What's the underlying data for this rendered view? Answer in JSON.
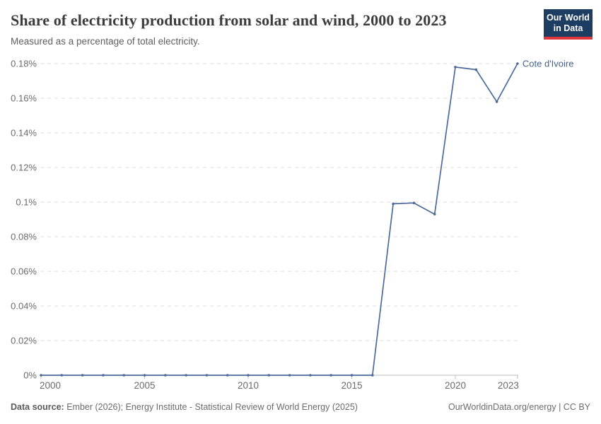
{
  "header": {
    "title": "Share of electricity production from solar and wind, 2000 to 2023",
    "subtitle": "Measured as a percentage of total electricity.",
    "logo": {
      "line1": "Our World",
      "line2": "in Data"
    }
  },
  "chart_data": {
    "type": "line",
    "title": "Share of electricity production from solar and wind, 2000 to 2023",
    "xlabel": "",
    "ylabel": "",
    "x": [
      2000,
      2001,
      2002,
      2003,
      2004,
      2005,
      2006,
      2007,
      2008,
      2009,
      2010,
      2011,
      2012,
      2013,
      2014,
      2015,
      2016,
      2017,
      2018,
      2019,
      2020,
      2021,
      2022,
      2023
    ],
    "series": [
      {
        "name": "Cote d'Ivoire",
        "color": "#4c6a9c",
        "values": [
          0,
          0,
          0,
          0,
          0,
          0,
          0,
          0,
          0,
          0,
          0,
          0,
          0,
          0,
          0,
          0,
          0,
          0.099,
          0.0995,
          0.093,
          0.178,
          0.1765,
          0.158,
          0.18
        ]
      }
    ],
    "x_ticks": [
      2000,
      2005,
      2010,
      2015,
      2020,
      2023
    ],
    "y_ticks": [
      "0%",
      "0.02%",
      "0.04%",
      "0.06%",
      "0.08%",
      "0.1%",
      "0.12%",
      "0.14%",
      "0.16%",
      "0.18%"
    ],
    "y_tick_values": [
      0,
      0.02,
      0.04,
      0.06,
      0.08,
      0.1,
      0.12,
      0.14,
      0.16,
      0.18
    ],
    "ylim": [
      0,
      0.18
    ],
    "grid": "horizontal-dashed",
    "legend_position": "end-of-line-label",
    "colors": {
      "line": "#4c6a9c",
      "series_label": "#44618f",
      "gridline": "#dedede",
      "axis_line": "#bcbcbc",
      "tick_label": "#6b6b6b"
    }
  },
  "footer": {
    "datasource_label": "Data source:",
    "datasource_text": "Ember (2026); Energy Institute - Statistical Review of World Energy (2025)",
    "link_text": "OurWorldinData.org/energy | CC BY"
  }
}
